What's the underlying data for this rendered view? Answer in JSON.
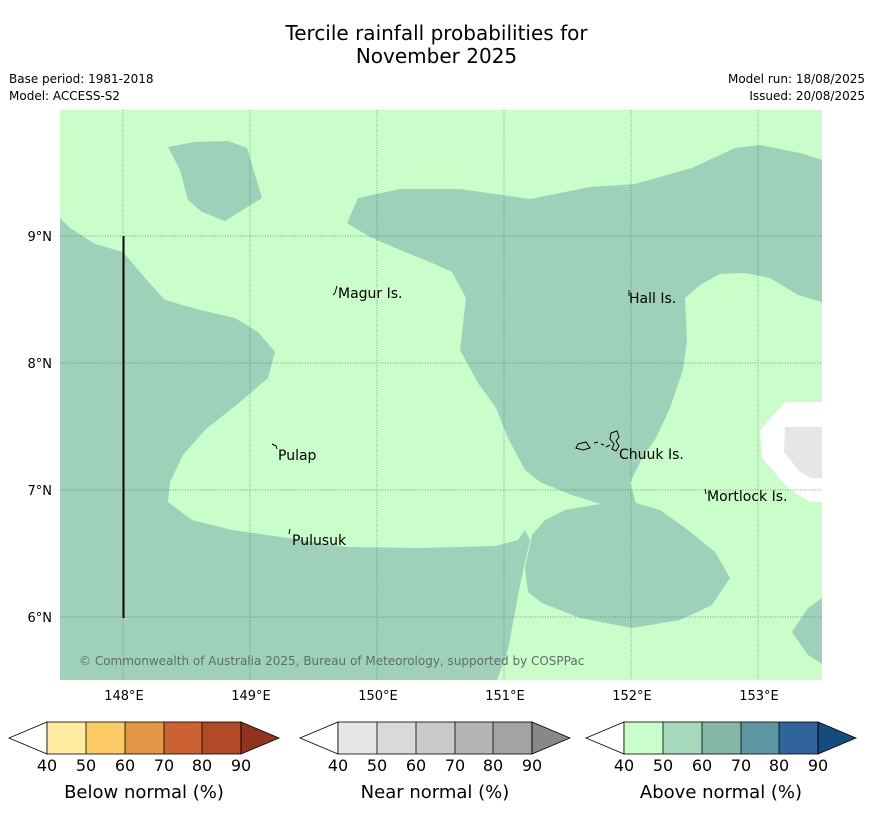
{
  "header": {
    "title_line1": "Tercile rainfall probabilities for",
    "title_line2": "November 2025",
    "base_period": "Base period: 1981-2018",
    "model": "Model: ACCESS-S2",
    "model_run": "Model run: 18/08/2025",
    "issued": "Issued: 20/08/2025"
  },
  "map": {
    "lon_ticks": [
      "148°E",
      "149°E",
      "150°E",
      "151°E",
      "152°E",
      "153°E"
    ],
    "lat_ticks": [
      "9°N",
      "8°N",
      "7°N",
      "6°N"
    ],
    "places": [
      "Magur Is.",
      "Hall Is.",
      "Pulap",
      "Chuuk Is.",
      "Mortlock Is.",
      "Pulusuk"
    ],
    "copyright": "© Commonwealth of Australia 2025, Bureau of Meteorology, supported by COSPPac",
    "colors": {
      "above_40_50": "#c9fdc9",
      "above_50_60": "#9fd1ba",
      "near_40_50": "#e6e6e6",
      "boundary_line": "#000000"
    }
  },
  "legend": {
    "ticks": [
      "40",
      "50",
      "60",
      "70",
      "80",
      "90"
    ],
    "below": {
      "label": "Below normal (%)",
      "colors": [
        "#ffffff",
        "#feeca0",
        "#fdcb66",
        "#e29747",
        "#cc6234",
        "#b24a27",
        "#923320"
      ]
    },
    "near": {
      "label": "Near normal (%)",
      "colors": [
        "#ffffff",
        "#e6e6e6",
        "#d9d9d9",
        "#c9c9c9",
        "#b5b5b5",
        "#a3a3a3",
        "#888888"
      ]
    },
    "above": {
      "label": "Above normal (%)",
      "colors": [
        "#ffffff",
        "#c9fdc9",
        "#a6d8bc",
        "#85b6a6",
        "#5d97a3",
        "#30649b",
        "#154c80"
      ]
    }
  }
}
